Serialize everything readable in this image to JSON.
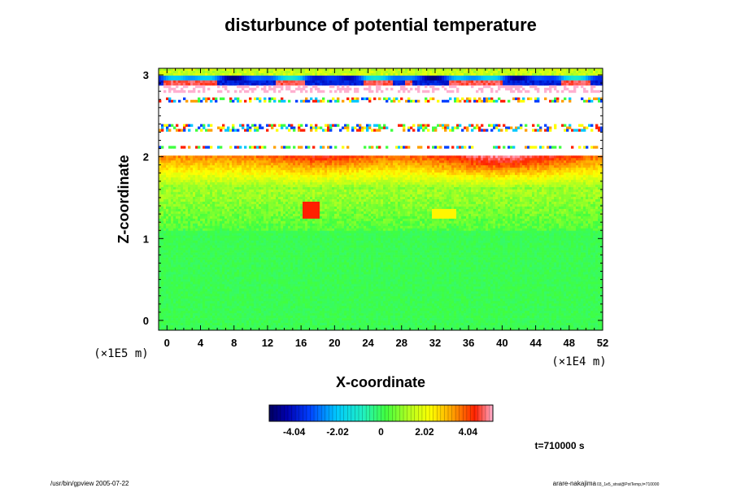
{
  "chart_data": {
    "type": "heatmap",
    "title": "disturbunce of potential temperature",
    "xlabel": "X-coordinate",
    "ylabel": "Z-coordinate",
    "x_unit": "(×1E4 m)",
    "y_unit": "(×1E5 m)",
    "xlim": [
      -1,
      52
    ],
    "ylim": [
      -0.12,
      3.08
    ],
    "x_ticks": [
      0,
      4,
      8,
      12,
      16,
      20,
      24,
      28,
      32,
      36,
      40,
      44,
      48,
      52
    ],
    "y_ticks": [
      0,
      1,
      2,
      3
    ],
    "colorbar": {
      "range": [
        -5.2,
        5.2
      ],
      "ticks": [
        -4.04,
        -2.02,
        0,
        2.02,
        4.04
      ],
      "tick_labels": [
        "-4.04",
        "-2.02",
        "0",
        "2.02",
        "4.04"
      ]
    },
    "field_description_zones": [
      {
        "z_from": 0.0,
        "z_to": 1.1,
        "value": 0.0
      },
      {
        "z_from": 1.1,
        "z_to": 1.6,
        "value": 1.0
      },
      {
        "z_from": 1.6,
        "z_to": 2.0,
        "value": 3.0
      },
      {
        "z_from": 2.0,
        "z_to": 2.8,
        "value": null
      },
      {
        "z_from": 2.8,
        "z_to": 3.08,
        "value": -4.0
      }
    ],
    "time_label": "t=710000 s"
  },
  "footer": {
    "left": "/usr/bin/gpview 2005-07-22",
    "right_main": "arare-nakajima",
    "right_small": "03_1e5_strat@PotTemp,t=710000"
  },
  "colors": {
    "axis": "#000000",
    "background": "#ffffff"
  }
}
